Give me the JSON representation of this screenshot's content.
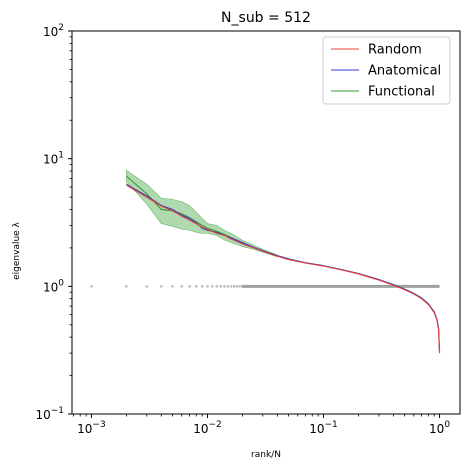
{
  "chart_data": {
    "type": "line",
    "title": "N_sub = 512",
    "xlabel": "rank/N",
    "ylabel": "eigenvalue λ",
    "xscale": "log",
    "yscale": "log",
    "xlim": [
      0.00068,
      1.5
    ],
    "ylim": [
      0.1,
      100
    ],
    "x_ticks": [
      {
        "value": 0.001,
        "base": "10",
        "exp": "−3"
      },
      {
        "value": 0.01,
        "base": "10",
        "exp": "−2"
      },
      {
        "value": 0.1,
        "base": "10",
        "exp": "−1"
      },
      {
        "value": 1,
        "base": "10",
        "exp": "0"
      }
    ],
    "y_ticks": [
      {
        "value": 0.1,
        "base": "10",
        "exp": "−1"
      },
      {
        "value": 1,
        "base": "10",
        "exp": "0"
      },
      {
        "value": 10,
        "base": "10",
        "exp": "1"
      },
      {
        "value": 100,
        "base": "10",
        "exp": "2"
      }
    ],
    "legend_position": "top-right",
    "grid": false,
    "series": [
      {
        "name": "Random",
        "color": "#e8413a",
        "x": [
          0.002,
          0.003,
          0.004,
          0.005,
          0.006,
          0.007,
          0.008,
          0.009,
          0.01,
          0.012,
          0.014,
          0.016,
          0.02,
          0.025,
          0.03,
          0.04,
          0.05,
          0.07,
          0.1,
          0.15,
          0.2,
          0.3,
          0.4,
          0.5,
          0.6,
          0.7,
          0.8,
          0.9,
          0.95,
          0.98,
          1.0
        ],
        "y": [
          6.2,
          5.0,
          4.25,
          3.9,
          3.55,
          3.3,
          3.1,
          2.9,
          2.8,
          2.6,
          2.5,
          2.35,
          2.15,
          2.0,
          1.88,
          1.72,
          1.62,
          1.52,
          1.44,
          1.33,
          1.25,
          1.12,
          1.02,
          0.94,
          0.87,
          0.8,
          0.72,
          0.62,
          0.54,
          0.46,
          0.3
        ]
      },
      {
        "name": "Anatomical",
        "color": "#3a3ad0",
        "x": [
          0.002,
          0.003,
          0.004,
          0.005,
          0.006,
          0.007,
          0.008,
          0.009,
          0.01,
          0.012,
          0.014,
          0.016,
          0.02,
          0.025,
          0.03,
          0.04,
          0.05,
          0.07,
          0.1,
          0.15,
          0.2,
          0.3,
          0.4,
          0.5,
          0.6,
          0.7,
          0.8,
          0.9,
          0.95,
          0.98,
          1.0
        ],
        "y": [
          6.3,
          5.1,
          4.3,
          4.0,
          3.6,
          3.4,
          3.15,
          2.85,
          2.75,
          2.65,
          2.5,
          2.4,
          2.2,
          2.02,
          1.9,
          1.74,
          1.64,
          1.53,
          1.45,
          1.34,
          1.26,
          1.13,
          1.03,
          0.95,
          0.88,
          0.81,
          0.73,
          0.63,
          0.55,
          0.47,
          0.31
        ]
      },
      {
        "name": "Functional",
        "color": "#2e9a2e",
        "x": [
          0.002,
          0.003,
          0.004,
          0.005,
          0.006,
          0.007,
          0.008,
          0.009,
          0.01,
          0.012,
          0.014,
          0.016,
          0.02,
          0.025,
          0.03,
          0.04,
          0.05,
          0.07,
          0.1,
          0.15,
          0.2,
          0.3,
          0.4,
          0.5,
          0.6,
          0.7,
          0.8,
          0.9,
          0.95,
          0.98,
          1.0
        ],
        "y": [
          7.3,
          5.3,
          4.0,
          3.9,
          3.7,
          3.45,
          3.2,
          3.0,
          2.85,
          2.7,
          2.55,
          2.4,
          2.2,
          2.02,
          1.9,
          1.74,
          1.64,
          1.53,
          1.45,
          1.34,
          1.26,
          1.13,
          1.03,
          0.95,
          0.88,
          0.81,
          0.73,
          0.63,
          0.55,
          0.47,
          0.3
        ],
        "band_x": [
          0.002,
          0.003,
          0.004,
          0.005,
          0.006,
          0.007,
          0.008,
          0.009,
          0.01,
          0.012,
          0.014,
          0.016,
          0.02,
          0.025,
          0.03,
          0.04
        ],
        "band_upper": [
          8.1,
          6.3,
          4.9,
          4.8,
          4.6,
          4.3,
          3.8,
          3.4,
          3.1,
          3.0,
          2.75,
          2.6,
          2.3,
          2.1,
          1.95,
          1.76
        ],
        "band_lower": [
          6.6,
          4.4,
          3.1,
          2.95,
          2.8,
          2.75,
          2.65,
          2.6,
          2.6,
          2.5,
          2.3,
          2.2,
          2.05,
          1.95,
          1.85,
          1.7
        ]
      },
      {
        "color": "#888888",
        "x": [
          0.001,
          0.002,
          0.003,
          0.004,
          0.005,
          0.006,
          0.007,
          0.008,
          0.009,
          0.01,
          0.011,
          0.012,
          0.013,
          0.014,
          0.015,
          0.016,
          0.017,
          0.018,
          0.019,
          0.02
        ],
        "y": [
          1,
          1,
          1,
          1,
          1,
          1,
          1,
          1,
          1,
          1,
          1,
          1,
          1,
          1,
          1,
          1,
          1,
          1,
          1,
          1
        ],
        "x_continuous_range": [
          0.02,
          1.0
        ],
        "y_value": 1
      }
    ]
  }
}
